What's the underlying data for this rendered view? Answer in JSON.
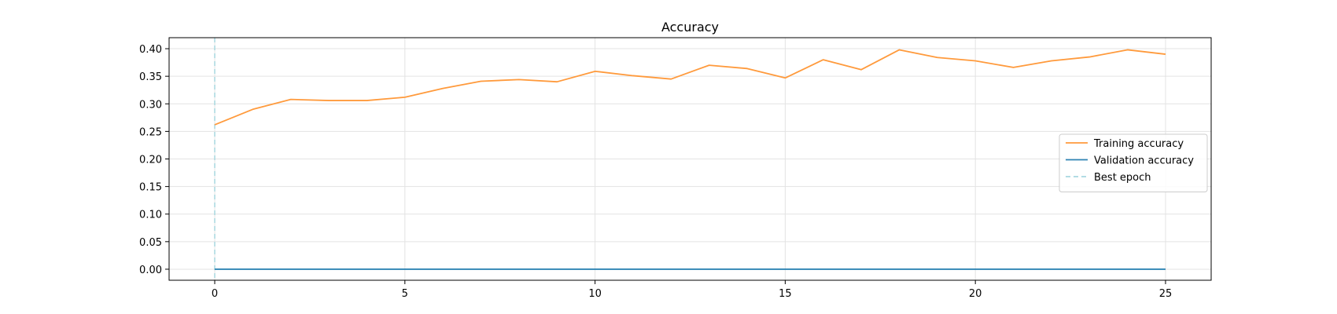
{
  "chart_data": {
    "type": "line",
    "title": "Accuracy",
    "xlabel": "",
    "ylabel": "",
    "xlim": [
      -1.2,
      26.2
    ],
    "ylim": [
      -0.02,
      0.42
    ],
    "x_ticks": [
      0,
      5,
      10,
      15,
      20,
      25
    ],
    "y_ticks": [
      0.0,
      0.05,
      0.1,
      0.15,
      0.2,
      0.25,
      0.3,
      0.35,
      0.4
    ],
    "y_tick_labels": [
      "0.00",
      "0.05",
      "0.10",
      "0.15",
      "0.20",
      "0.25",
      "0.30",
      "0.35",
      "0.40"
    ],
    "grid": true,
    "legend_position": "center-right",
    "x": [
      0,
      1,
      2,
      3,
      4,
      5,
      6,
      7,
      8,
      9,
      10,
      11,
      12,
      13,
      14,
      15,
      16,
      17,
      18,
      19,
      20,
      21,
      22,
      23,
      24,
      25
    ],
    "series": [
      {
        "name": "Training accuracy",
        "color": "#ff9a3c",
        "style": "solid",
        "values": [
          0.262,
          0.29,
          0.308,
          0.306,
          0.306,
          0.312,
          0.328,
          0.341,
          0.344,
          0.34,
          0.359,
          0.351,
          0.345,
          0.37,
          0.364,
          0.347,
          0.38,
          0.362,
          0.398,
          0.384,
          0.378,
          0.366,
          0.378,
          0.385,
          0.398,
          0.39
        ]
      },
      {
        "name": "Validation accuracy",
        "color": "#2f84b4",
        "style": "solid",
        "values": [
          0,
          0,
          0,
          0,
          0,
          0,
          0,
          0,
          0,
          0,
          0,
          0,
          0,
          0,
          0,
          0,
          0,
          0,
          0,
          0,
          0,
          0,
          0,
          0,
          0,
          0
        ]
      }
    ],
    "vlines": [
      {
        "name": "Best epoch",
        "x": 0,
        "color": "#a8d8e0",
        "style": "dashed"
      }
    ]
  }
}
